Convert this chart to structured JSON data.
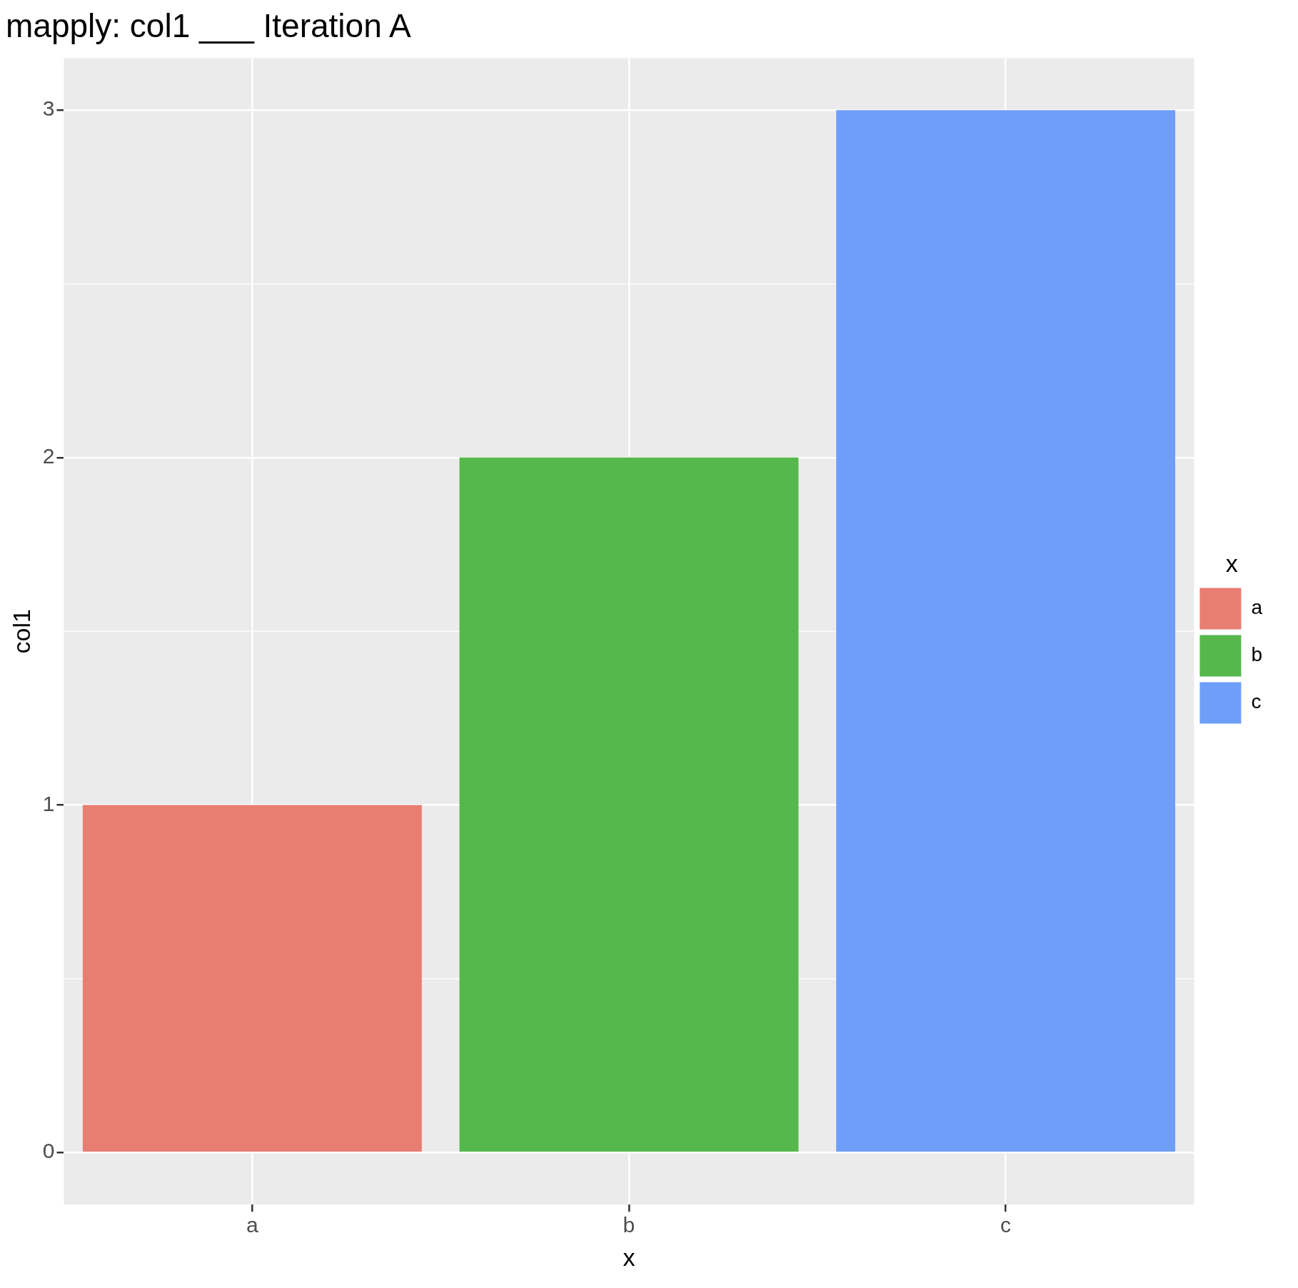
{
  "chart_data": {
    "type": "bar",
    "title": "mapply: col1 ___ Iteration A",
    "xlabel": "x",
    "ylabel": "col1",
    "legend_title": "x",
    "categories": [
      "a",
      "b",
      "c"
    ],
    "series": [
      {
        "name": "a",
        "color": "#e87d72",
        "values": [
          1,
          null,
          null
        ]
      },
      {
        "name": "b",
        "color": "#56b74d",
        "values": [
          null,
          2,
          null
        ]
      },
      {
        "name": "c",
        "color": "#6f9ef8",
        "values": [
          null,
          null,
          3
        ]
      }
    ],
    "ylim": [
      -0.15,
      3.15
    ],
    "yticks": [
      0,
      1,
      2,
      3
    ],
    "grid": true,
    "legend": "right"
  }
}
